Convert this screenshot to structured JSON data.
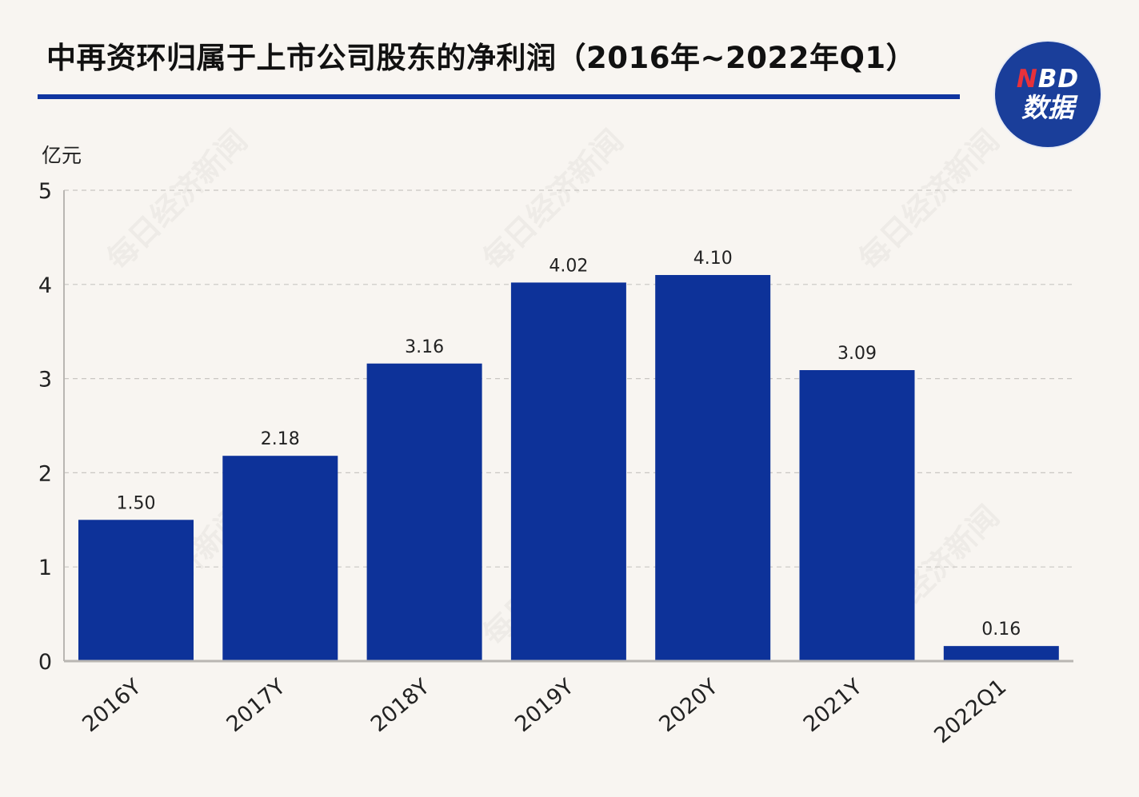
{
  "title": "中再资环归属于上市公司股东的净利润（2016年~2022年Q1）",
  "logo": {
    "brand_n": "N",
    "brand_rest": "BD",
    "sub": "数据"
  },
  "watermark": "每日经济新闻",
  "colors": {
    "bar": "#0d3299",
    "accent_rule": "#1035a0",
    "background": "#f8f5f1",
    "grid": "#c9c6c2",
    "axis": "#b9b6b2"
  },
  "chart_data": {
    "type": "bar",
    "title": "中再资环归属于上市公司股东的净利润（2016年~2022年Q1）",
    "ylabel": "亿元",
    "xlabel": "",
    "ylim": [
      0,
      5
    ],
    "yticks": [
      "0",
      "1",
      "2",
      "3",
      "4",
      "5"
    ],
    "grid": true,
    "categories": [
      "2016Y",
      "2017Y",
      "2018Y",
      "2019Y",
      "2020Y",
      "2021Y",
      "2022Q1"
    ],
    "values": [
      1.5,
      2.18,
      3.16,
      4.02,
      4.1,
      3.09,
      0.16
    ],
    "value_labels": [
      "1.50",
      "2.18",
      "3.16",
      "4.02",
      "4.10",
      "3.09",
      "0.16"
    ]
  }
}
